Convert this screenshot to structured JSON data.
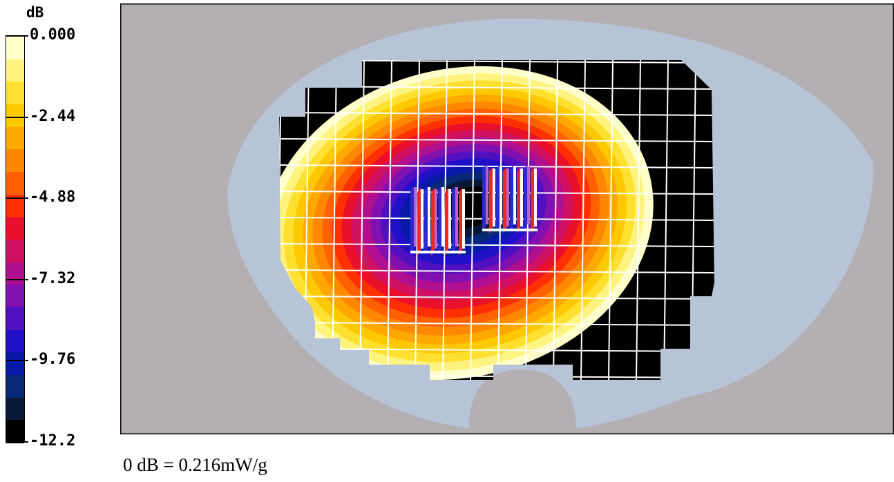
{
  "chart_data": {
    "type": "heatmap",
    "unit": "dB",
    "colorbar": {
      "ticks": [
        "0.000",
        "-2.44",
        "-4.88",
        "-7.32",
        "-9.76",
        "-12.2"
      ],
      "tick_values": [
        0,
        -2.44,
        -4.88,
        -7.32,
        -9.76,
        -12.2
      ],
      "range": [
        -12.2,
        0
      ],
      "colors": [
        "#ffffcc",
        "#fff380",
        "#ffe030",
        "#ffc800",
        "#ffa800",
        "#ff8800",
        "#ff6000",
        "#ff3000",
        "#e8102a",
        "#d01060",
        "#b01090",
        "#8010b0",
        "#5010c0",
        "#2010c8",
        "#0818a8",
        "#082878",
        "#081838",
        "#000000"
      ]
    },
    "reference": "0 dB = 0.216mW/g",
    "peak_db": 0,
    "background_colors": {
      "frame": "#b3afb3",
      "phantom": "#b7c4d8",
      "scan_area": "#000000",
      "grid": "#ffffff"
    }
  }
}
